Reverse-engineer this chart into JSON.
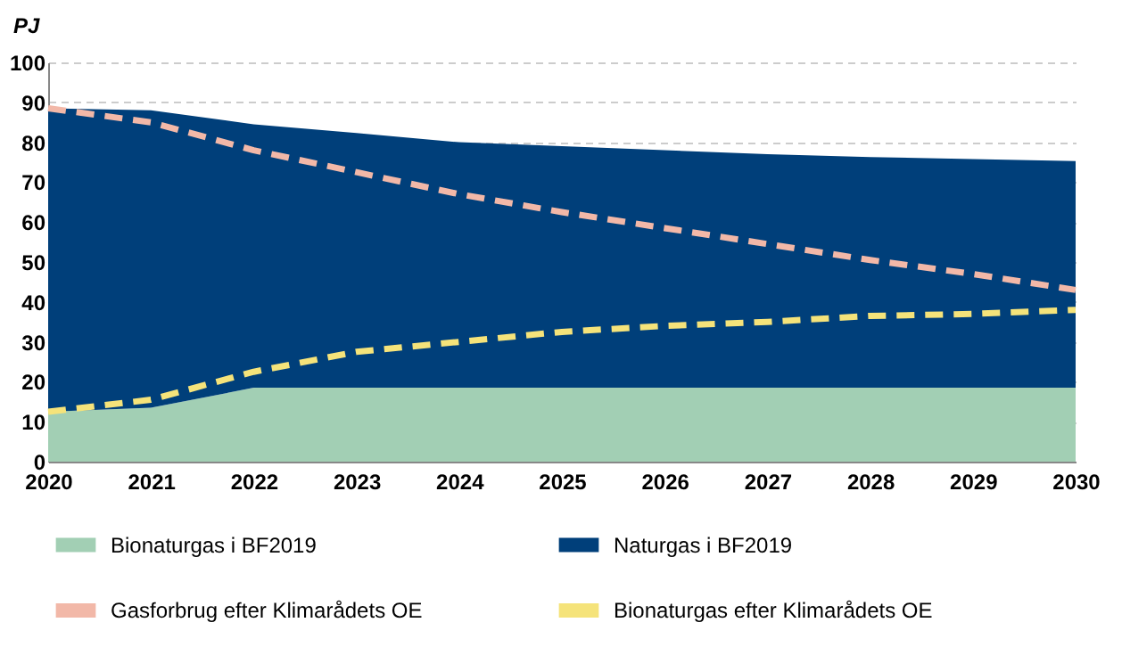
{
  "chart_data": {
    "type": "area",
    "ylabel": "PJ",
    "categories": [
      "2020",
      "2021",
      "2022",
      "2023",
      "2024",
      "2025",
      "2026",
      "2027",
      "2028",
      "2029",
      "2030"
    ],
    "stacked": true,
    "ylim": [
      0,
      100
    ],
    "yticks": [
      0,
      10,
      20,
      30,
      40,
      50,
      60,
      70,
      80,
      90,
      100
    ],
    "grid": "y",
    "legend": "bottom",
    "series": [
      {
        "name": "Bionaturgas i BF2019",
        "color": "#a2cfb4",
        "type": "area",
        "values": [
          12.5,
          13.5,
          18.5,
          18.5,
          18.5,
          18.5,
          18.5,
          18.5,
          18.5,
          18.5,
          18.5
        ]
      },
      {
        "name": "Naturgas i BF2019",
        "color": "#003f7a",
        "type": "area",
        "values": [
          76,
          74.5,
          66,
          63.8,
          61.5,
          60.5,
          59.5,
          58.5,
          57.8,
          57.3,
          56.8
        ]
      },
      {
        "name": "Gasforbrug efter Klimarådets OE",
        "color": "#f2b8a8",
        "type": "line",
        "line_style": "dashed",
        "values": [
          88.5,
          85,
          78,
          72.5,
          67,
          62.5,
          58.5,
          54.5,
          50.5,
          47,
          43
        ]
      },
      {
        "name": "Bionaturgas efter Klimarådets OE",
        "color": "#f5e37a",
        "type": "line",
        "line_style": "dashed",
        "values": [
          12.5,
          15.5,
          22.5,
          27.5,
          30,
          32.5,
          34,
          35,
          36.5,
          37,
          38
        ]
      }
    ]
  }
}
